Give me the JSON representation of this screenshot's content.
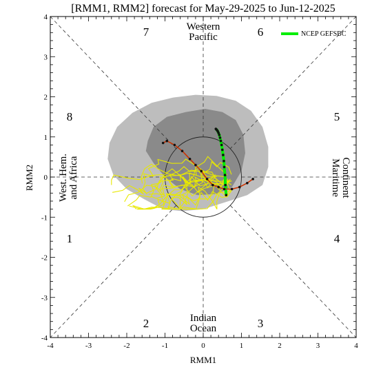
{
  "chart_data": {
    "type": "scatter",
    "title": "[RMM1, RMM2] forecast for May-29-2025 to Jun-12-2025",
    "xlabel": "RMM1",
    "ylabel": "RMM2",
    "xlim": [
      -4,
      4
    ],
    "ylim": [
      -4,
      4
    ],
    "xticks": [
      "-4",
      "-3",
      "-2",
      "-1",
      "0",
      "1",
      "2",
      "3",
      "4"
    ],
    "yticks": [
      "-4",
      "-3",
      "-2",
      "-1",
      "0",
      "1",
      "2",
      "3",
      "4"
    ],
    "grid": false,
    "legend_position": "top-right",
    "phase_labels": [
      "1",
      "2",
      "3",
      "4",
      "5",
      "6",
      "7",
      "8"
    ],
    "region_labels": {
      "top": [
        "Western",
        "Pacific"
      ],
      "bottom": [
        "Indian",
        "Ocean"
      ],
      "left": [
        "West. Hem.",
        "and Africa"
      ],
      "right": [
        "Maritime",
        "Continent"
      ]
    },
    "colors": {
      "outer_spread": "#bdbdbd",
      "inner_spread": "#8a8a8a",
      "ensemble_members": "#e8e800",
      "mean_track": "#00ee00",
      "observed_track": "#cc3300"
    },
    "series": [
      {
        "name": "NCEP GEFSBC",
        "x": [
          0.6,
          0.58,
          0.57,
          0.55,
          0.54,
          0.52,
          0.5,
          0.48,
          0.46,
          0.44,
          0.42,
          0.4,
          0.38,
          0.36,
          0.34,
          0.33
        ],
        "y": [
          -0.45,
          -0.2,
          0.05,
          0.25,
          0.4,
          0.55,
          0.68,
          0.8,
          0.9,
          0.98,
          1.05,
          1.1,
          1.14,
          1.17,
          1.19,
          1.2
        ]
      },
      {
        "name": "",
        "x": [
          1.3,
          1.15,
          0.95,
          0.75,
          0.55,
          0.4,
          0.25,
          0.1,
          -0.05,
          -0.2,
          -0.35,
          -0.55,
          -0.75,
          -0.95,
          -1.05
        ],
        "y": [
          -0.05,
          -0.15,
          -0.25,
          -0.3,
          -0.3,
          -0.25,
          -0.2,
          -0.05,
          0.15,
          0.3,
          0.45,
          0.65,
          0.8,
          0.9,
          0.85
        ]
      }
    ]
  }
}
